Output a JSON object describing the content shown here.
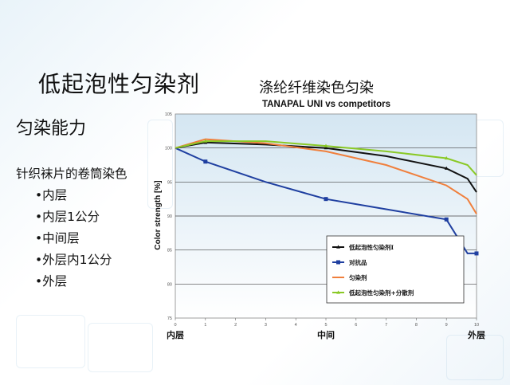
{
  "slide": {
    "title": "低起泡性匀染剂",
    "subtitle": "匀染能力",
    "description": "针织袜片的卷筒染色",
    "bullets": [
      "•内层",
      "•内层1公分",
      "•中间层",
      "•外层内1公分",
      "•外层"
    ]
  },
  "chart_data": {
    "type": "line",
    "title": "涤纶纤维染色匀染",
    "subtitle": "TANAPAL UNI vs competitors",
    "xlabel": "",
    "ylabel": "Color strength [%]",
    "xlim": [
      0,
      10
    ],
    "ylim": [
      75,
      105
    ],
    "x_ticks": [
      0,
      1,
      2,
      3,
      4,
      5,
      6,
      7,
      8,
      9,
      10
    ],
    "y_ticks": [
      75,
      80,
      85,
      90,
      95,
      100,
      105
    ],
    "x_category_labels": [
      {
        "x": 0,
        "label": "内层"
      },
      {
        "x": 5,
        "label": "中间"
      },
      {
        "x": 10,
        "label": "外层"
      }
    ],
    "grid": true,
    "legend_position": "bottom-right",
    "series": [
      {
        "name": "低起泡性匀染剂I",
        "color": "#111111",
        "marker": "triangle",
        "points": [
          [
            0,
            100
          ],
          [
            1,
            100.8
          ],
          [
            3,
            100.5
          ],
          [
            5,
            100
          ],
          [
            7,
            98.8
          ],
          [
            9,
            97
          ],
          [
            9.7,
            95.5
          ],
          [
            10,
            93.5
          ]
        ]
      },
      {
        "name": "对抗品",
        "color": "#1f3fa0",
        "marker": "square",
        "points": [
          [
            0,
            100
          ],
          [
            1,
            98
          ],
          [
            3,
            95
          ],
          [
            5,
            92.5
          ],
          [
            7,
            91
          ],
          [
            9,
            89.5
          ],
          [
            9.7,
            84.5
          ],
          [
            10,
            84.5
          ]
        ]
      },
      {
        "name": "匀染剂",
        "color": "#f07f3c",
        "marker": "none",
        "points": [
          [
            0,
            100
          ],
          [
            1,
            101.3
          ],
          [
            3,
            100.7
          ],
          [
            5,
            99.5
          ],
          [
            7,
            97.5
          ],
          [
            9,
            94.5
          ],
          [
            9.7,
            92.5
          ],
          [
            10,
            90.3
          ]
        ]
      },
      {
        "name": "低起泡性匀染剂+分散剂",
        "color": "#8ac926",
        "marker": "triangle",
        "points": [
          [
            0,
            100
          ],
          [
            1,
            101
          ],
          [
            3,
            101
          ],
          [
            5,
            100.3
          ],
          [
            7,
            99.5
          ],
          [
            9,
            98.5
          ],
          [
            9.7,
            97.5
          ],
          [
            10,
            96
          ]
        ]
      }
    ]
  }
}
